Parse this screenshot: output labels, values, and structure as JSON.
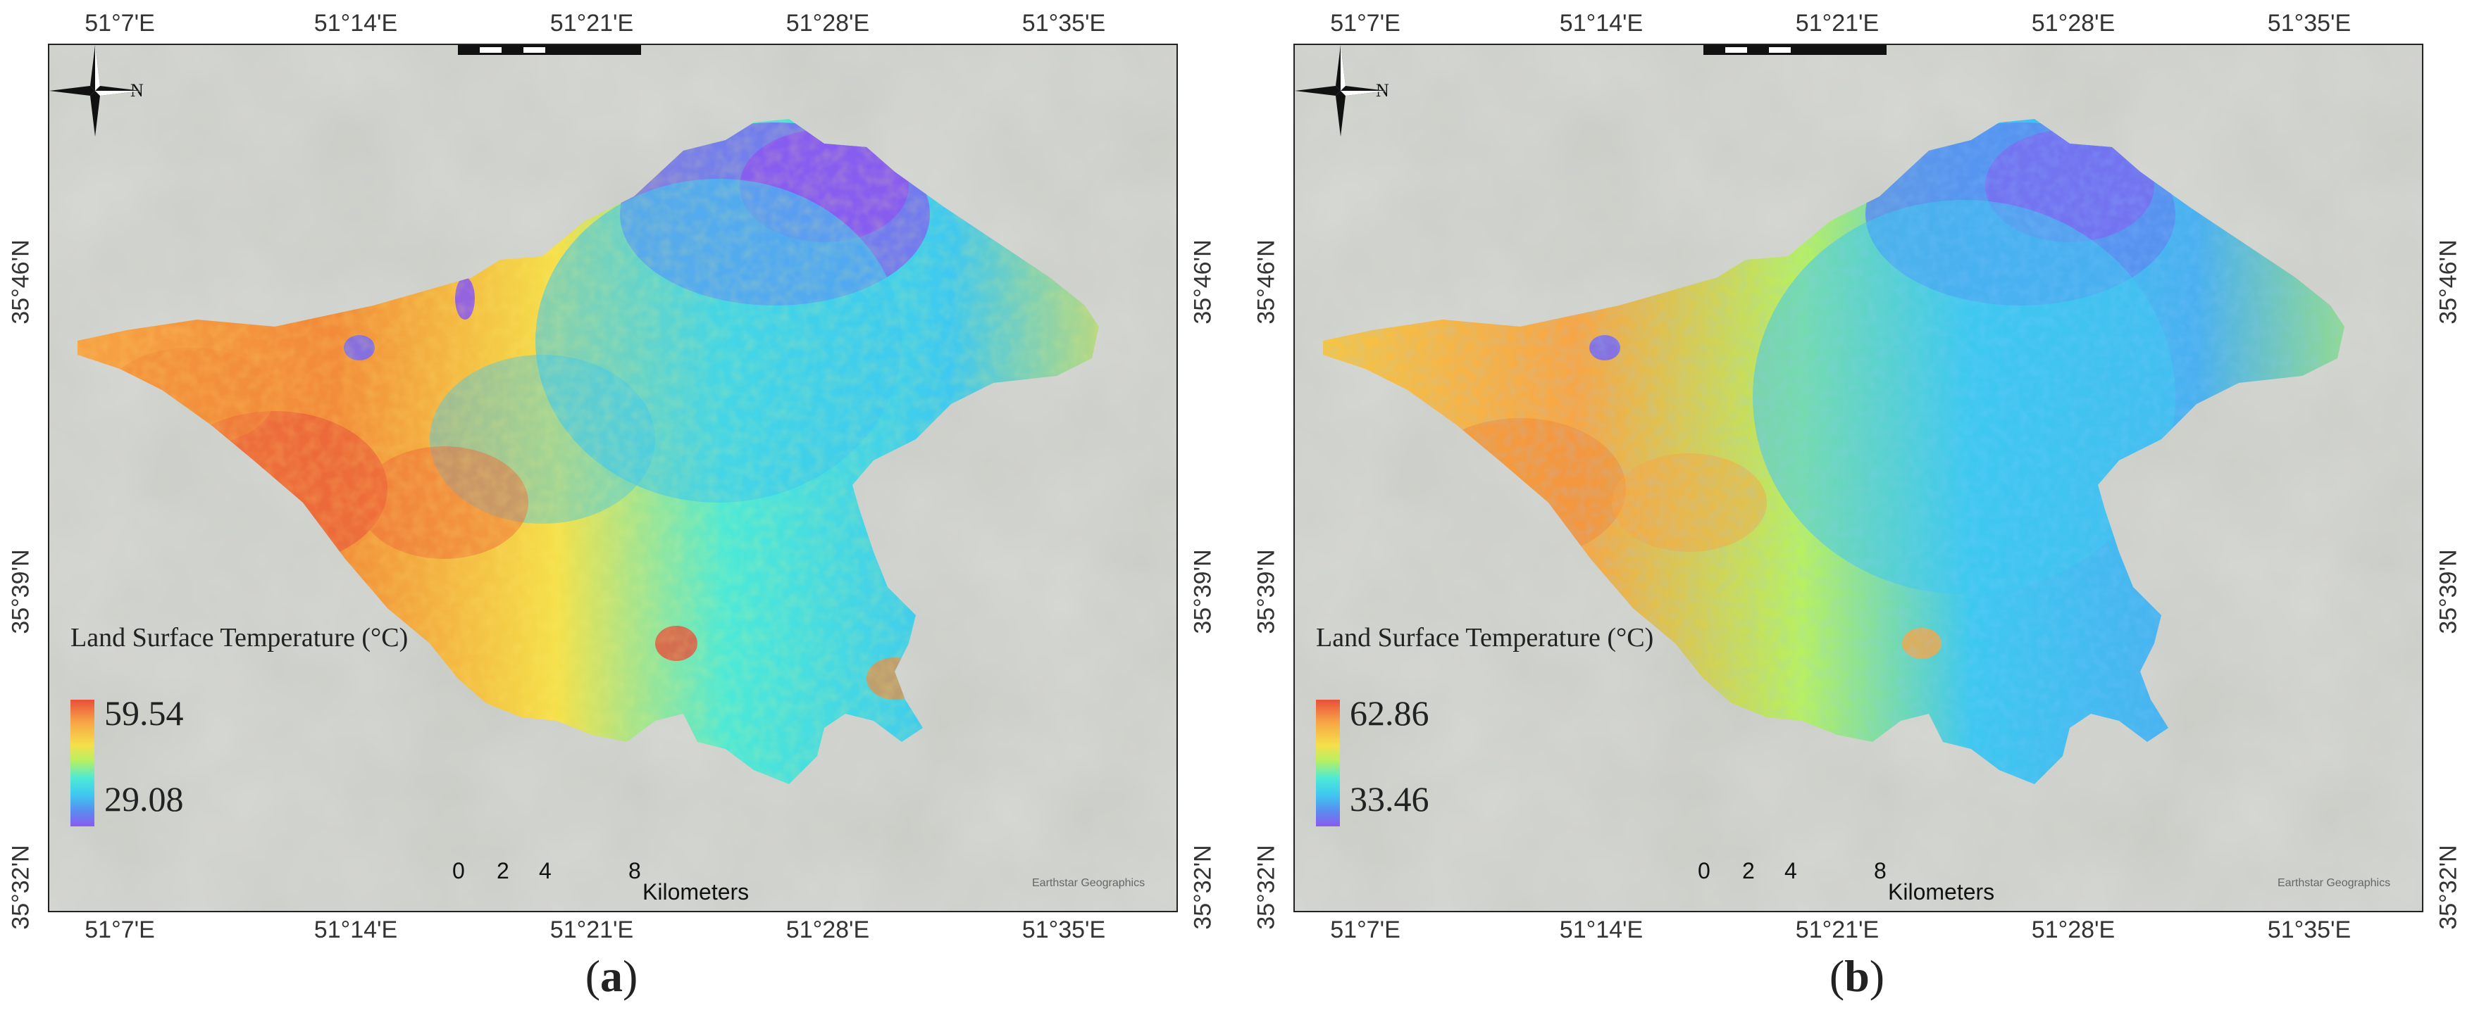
{
  "panels": [
    {
      "id": "a",
      "caption_open": "(",
      "caption_letter": "a",
      "caption_close": ")",
      "legend": {
        "title": "Land Surface Temperature (°C)",
        "max": "59.54",
        "min": "29.08",
        "ramp_colors": [
          "#e8503a",
          "#f7a646",
          "#f5e04a",
          "#b8f062",
          "#4ee9d6",
          "#3ec8f0",
          "#5a8cf0",
          "#8a5af0"
        ]
      },
      "north_label": "N",
      "scale": {
        "ticks": [
          "0",
          "2",
          "4",
          "8"
        ],
        "units": "Kilometers"
      },
      "attribution": "Earthstar Geographics",
      "lon_labels": [
        "51°7'E",
        "51°14'E",
        "51°21'E",
        "51°28'E",
        "51°35'E"
      ],
      "lat_labels": [
        "35°46'N",
        "35°39'N",
        "35°32'N"
      ],
      "heat_bias": "warm"
    },
    {
      "id": "b",
      "caption_open": "(",
      "caption_letter": "b",
      "caption_close": ")",
      "legend": {
        "title": "Land Surface Temperature (°C)",
        "max": "62.86",
        "min": "33.46",
        "ramp_colors": [
          "#e8503a",
          "#f7a646",
          "#f5e04a",
          "#b8f062",
          "#4ee9d6",
          "#3ec8f0",
          "#5a8cf0",
          "#8a5af0"
        ]
      },
      "north_label": "N",
      "scale": {
        "ticks": [
          "0",
          "2",
          "4",
          "8"
        ],
        "units": "Kilometers"
      },
      "attribution": "Earthstar Geographics",
      "lon_labels": [
        "51°7'E",
        "51°14'E",
        "51°21'E",
        "51°28'E",
        "51°35'E"
      ],
      "lat_labels": [
        "35°46'N",
        "35°39'N",
        "35°32'N"
      ],
      "heat_bias": "cool"
    }
  ],
  "colors": {
    "basemap": "#c9cbc5",
    "frame": "#222222"
  }
}
